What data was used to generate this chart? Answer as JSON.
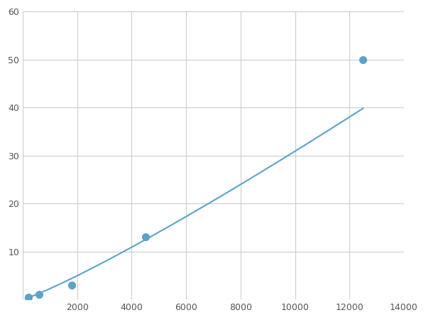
{
  "x": [
    200,
    600,
    1800,
    4500,
    12500
  ],
  "y": [
    0.5,
    1.0,
    3.0,
    13.0,
    50.0
  ],
  "line_color": "#5ba3c9",
  "marker_color": "#5ba3c9",
  "marker_size": 7,
  "line_width": 1.5,
  "xlim": [
    0,
    14000
  ],
  "ylim": [
    0,
    60
  ],
  "xticks": [
    0,
    2000,
    4000,
    6000,
    8000,
    10000,
    12000,
    14000
  ],
  "yticks": [
    0,
    10,
    20,
    30,
    40,
    50,
    60
  ],
  "grid_color": "#cccccc",
  "grid_linewidth": 0.8,
  "background_color": "#ffffff",
  "figure_width": 6.0,
  "figure_height": 4.5,
  "dpi": 100
}
